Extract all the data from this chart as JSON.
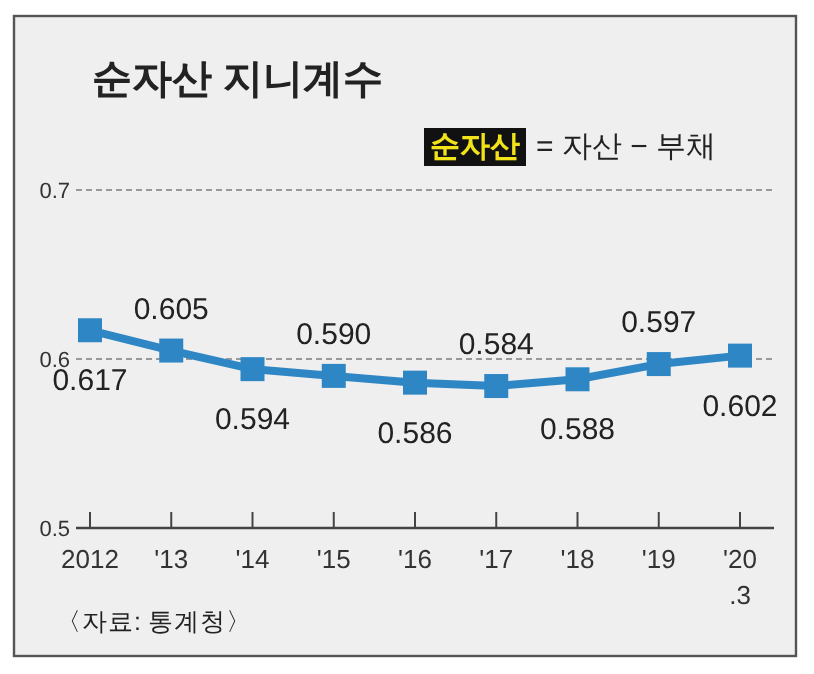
{
  "chart_data": {
    "type": "line",
    "title": "순자산 지니계수",
    "categories": [
      "2012",
      "'13",
      "'14",
      "'15",
      "'16",
      "'17",
      "'18",
      "'19",
      "'20.3"
    ],
    "values": [
      0.617,
      0.605,
      0.594,
      0.59,
      0.586,
      0.584,
      0.588,
      0.597,
      0.602
    ],
    "value_labels": [
      "0.617",
      "0.605",
      "0.594",
      "0.590",
      "0.586",
      "0.584",
      "0.588",
      "0.597",
      "0.602"
    ],
    "color": "#2f86c4",
    "marker": "square",
    "grid": "y",
    "ylim": [
      0.5,
      0.7
    ],
    "yticks": [
      0.5,
      0.6,
      0.7
    ],
    "annotations": [
      "순자산",
      "= 자산 − 부채",
      "〈자료: 통계청〉"
    ]
  }
}
